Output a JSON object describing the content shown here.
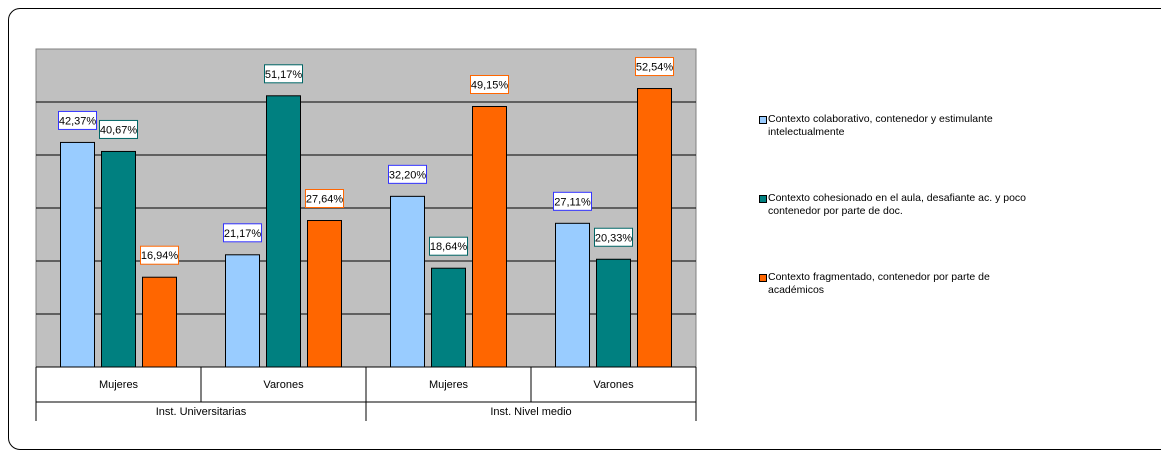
{
  "chart_data": {
    "type": "bar",
    "ylim": [
      0,
      60
    ],
    "grid": true,
    "legend_position": "right",
    "groups": [
      "Inst. Universitarias",
      "Inst. Nivel medio"
    ],
    "categories": [
      "Mujeres",
      "Varones",
      "Mujeres",
      "Varones"
    ],
    "series": [
      {
        "name": "Contexto colaborativo, contenedor y estimulante intelectualmente",
        "color": "#99ccff",
        "label_border": "#3333ff",
        "values": [
          42.37,
          21.17,
          32.2,
          27.11
        ],
        "labels": [
          "42,37%",
          "21,17%",
          "32,20%",
          "27,11%"
        ]
      },
      {
        "name": "Contexto cohesionado en el aula, desafiante ac. y poco contenedor por parte de doc.",
        "color": "#008080",
        "label_border": "#006666",
        "values": [
          40.67,
          51.17,
          18.64,
          20.33
        ],
        "labels": [
          "40,67%",
          "51,17%",
          "18,64%",
          "20,33%"
        ]
      },
      {
        "name": "Contexto fragmentado, contenedor por parte de académicos",
        "color": "#ff6600",
        "label_border": "#ff6600",
        "values": [
          16.94,
          27.64,
          49.15,
          52.54
        ],
        "labels": [
          "16,94%",
          "27,64%",
          "49,15%",
          "52,54%"
        ]
      }
    ],
    "plot_background": "#c0c0c0"
  }
}
